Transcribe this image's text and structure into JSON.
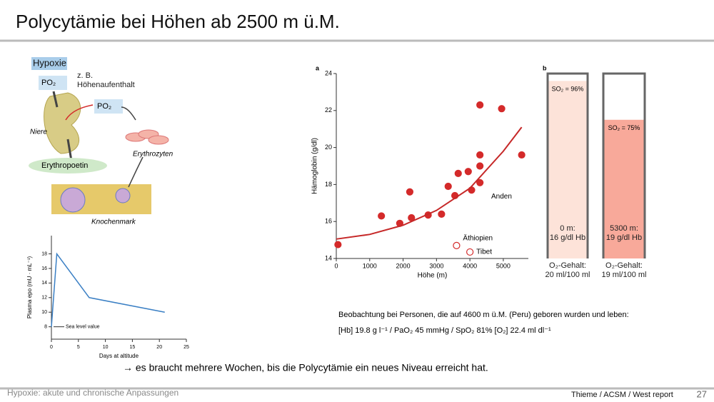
{
  "slide": {
    "title": "Polycytämie bei Höhen ab 2500 m ü.M.",
    "footer_left": "Hypoxie: akute und chronische Anpassungen",
    "footer_source": "Thieme / ACSM / West report",
    "page": "27"
  },
  "diagram": {
    "title": "Hypoxie",
    "po2_left": "PO₂",
    "note": "z. B.\nHöhenaufenthalt",
    "po2_right": "PO₂",
    "kidney": "Niere",
    "cells": "Erythrozyten",
    "hormone": "Erythropoetin",
    "marrow": "Knochenmark"
  },
  "observation": {
    "line1": "Beobachtung bei Personen, die auf  4600 m ü.M. (Peru) geboren wurden und leben:",
    "line2": "[Hb] 19.8 g l⁻¹  / PaO₂  45 mmHg / SpO₂ 81% [O₂] 22.4 ml dl⁻¹"
  },
  "conclusion": "→ es braucht mehrere Wochen, bis die Polycytämie ein neues Niveau erreicht hat.",
  "chart_data": [
    {
      "type": "line",
      "x_label": "Days at altitude",
      "y_label": "Plasma epo (mU · mL⁻¹)",
      "annotation": "Sea level value",
      "x": [
        0,
        1,
        7,
        21
      ],
      "series": [
        {
          "color": "#3a7fc4",
          "values": [
            8,
            18,
            12,
            10
          ]
        }
      ],
      "xlim": [
        0,
        25
      ],
      "xticks": [
        0,
        5,
        10,
        15,
        20,
        25
      ],
      "ylim": [
        6.3,
        20.5
      ],
      "yticks": [
        8,
        10,
        12,
        14,
        16,
        18
      ]
    },
    {
      "type": "scatter",
      "label": "a",
      "x_label": "Höhe (m)",
      "y_label": "Hämoglobin (g/dl)",
      "annotation": "Anden",
      "xlim": [
        0,
        5750
      ],
      "xticks": [
        0,
        1000,
        2000,
        3000,
        4000,
        5000
      ],
      "ylim": [
        14,
        24
      ],
      "yticks": [
        14,
        16,
        18,
        20,
        22,
        24
      ],
      "series": [
        {
          "color": "#d42a2a",
          "marker": "filled",
          "x": [
            50,
            1350,
            1900,
            2200,
            2250,
            2750,
            3150,
            3350,
            3550,
            3650,
            3950,
            4050,
            4300,
            4300,
            4300,
            4300,
            4950,
            5550
          ],
          "values": [
            14.75,
            16.3,
            15.9,
            17.6,
            16.2,
            16.35,
            16.4,
            17.9,
            17.4,
            18.6,
            18.7,
            17.7,
            18.1,
            19.0,
            19.6,
            22.3,
            22.1,
            19.6
          ]
        },
        {
          "color": "#c62828",
          "marker": "line",
          "x": [
            0,
            1000,
            2000,
            3000,
            4000,
            5000,
            5550
          ],
          "values": [
            15.05,
            15.3,
            15.8,
            16.6,
            17.8,
            19.8,
            21.1
          ]
        },
        {
          "name": "Äthiopien",
          "color": "#d42a2a",
          "marker": "open",
          "x": [
            3600
          ],
          "values": [
            14.7
          ]
        },
        {
          "name": "Tibet",
          "color": "#d42a2a",
          "marker": "open",
          "x": [
            4000
          ],
          "values": [
            14.35
          ]
        }
      ]
    },
    {
      "type": "bar",
      "label": "b",
      "categories": [
        "O₂-Gehalt:\n20 ml/100 ml",
        "O₂-Gehalt:\n19 ml/100 ml"
      ],
      "values": [
        96,
        75
      ],
      "value_labels": [
        "SO₂ = 96%",
        "SO₂ = 75%"
      ],
      "inner_labels": [
        "0 m:\n16 g/dl Hb",
        "5300 m:\n19 g/dl Hb"
      ],
      "colors": [
        "#fde3d9",
        "#f8a99a"
      ],
      "ylim": [
        0,
        100
      ]
    }
  ]
}
